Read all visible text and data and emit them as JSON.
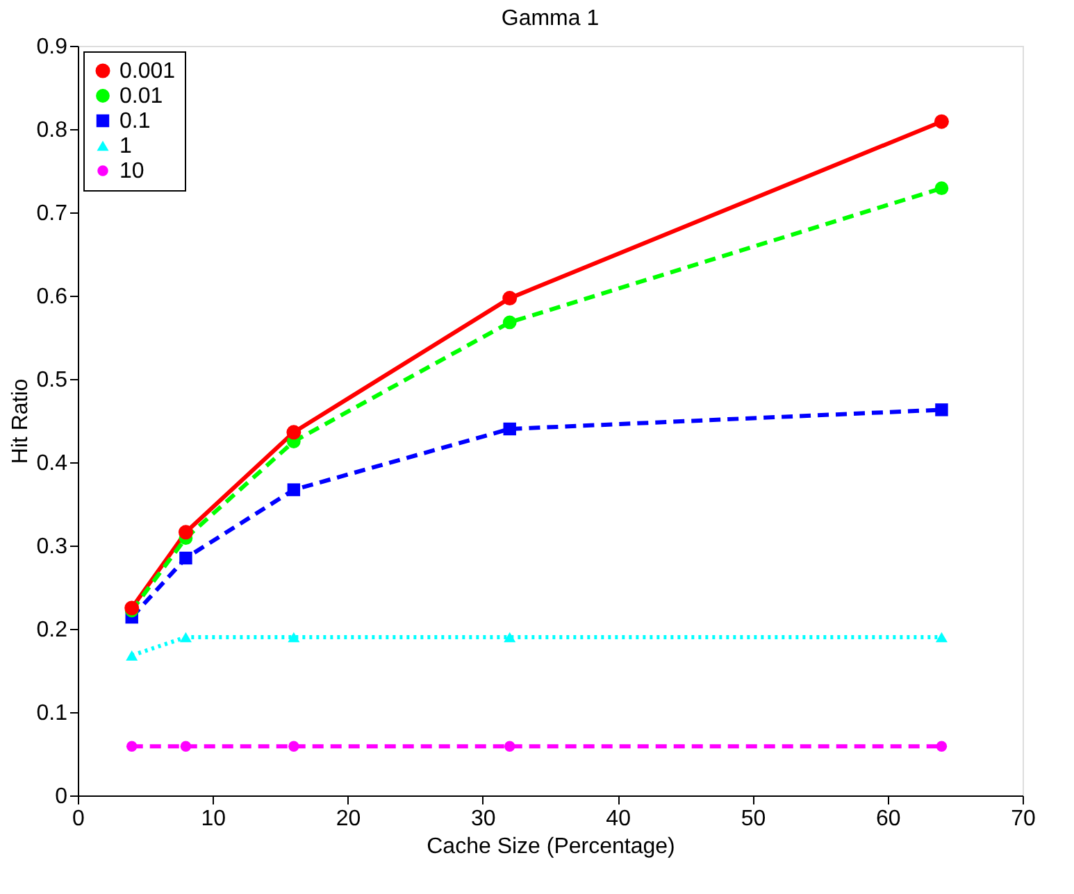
{
  "chart_data": {
    "type": "line",
    "title": "Gamma 1",
    "xlabel": "Cache Size (Percentage)",
    "ylabel": "Hit Ratio",
    "x": [
      4,
      8,
      16,
      32,
      64
    ],
    "series": [
      {
        "name": "0.001",
        "color": "#ff0000",
        "marker": "circle",
        "line_style": "solid",
        "values": [
          0.225,
          0.316,
          0.436,
          0.597,
          0.809
        ]
      },
      {
        "name": "0.01",
        "color": "#00ff00",
        "marker": "circle",
        "line_style": "dashed",
        "values": [
          0.222,
          0.309,
          0.425,
          0.568,
          0.729
        ]
      },
      {
        "name": "0.1",
        "color": "#0000ff",
        "marker": "square",
        "line_style": "dashed",
        "values": [
          0.214,
          0.285,
          0.367,
          0.44,
          0.463
        ]
      },
      {
        "name": "1",
        "color": "#00ffff",
        "marker": "triangle",
        "line_style": "dotted",
        "values": [
          0.168,
          0.19,
          0.19,
          0.19,
          0.19
        ]
      },
      {
        "name": "10",
        "color": "#ff00ff",
        "marker": "circle",
        "line_style": "dashed",
        "values": [
          0.059,
          0.059,
          0.059,
          0.059,
          0.059
        ]
      }
    ],
    "xlim": [
      0,
      70
    ],
    "xticks": [
      0,
      10,
      20,
      30,
      40,
      50,
      60,
      70
    ],
    "ylim": [
      0,
      0.9
    ],
    "yticks": [
      0,
      0.1,
      0.2,
      0.3,
      0.4,
      0.5,
      0.6,
      0.7,
      0.8,
      0.9
    ],
    "grid": false,
    "legend": "top left"
  }
}
